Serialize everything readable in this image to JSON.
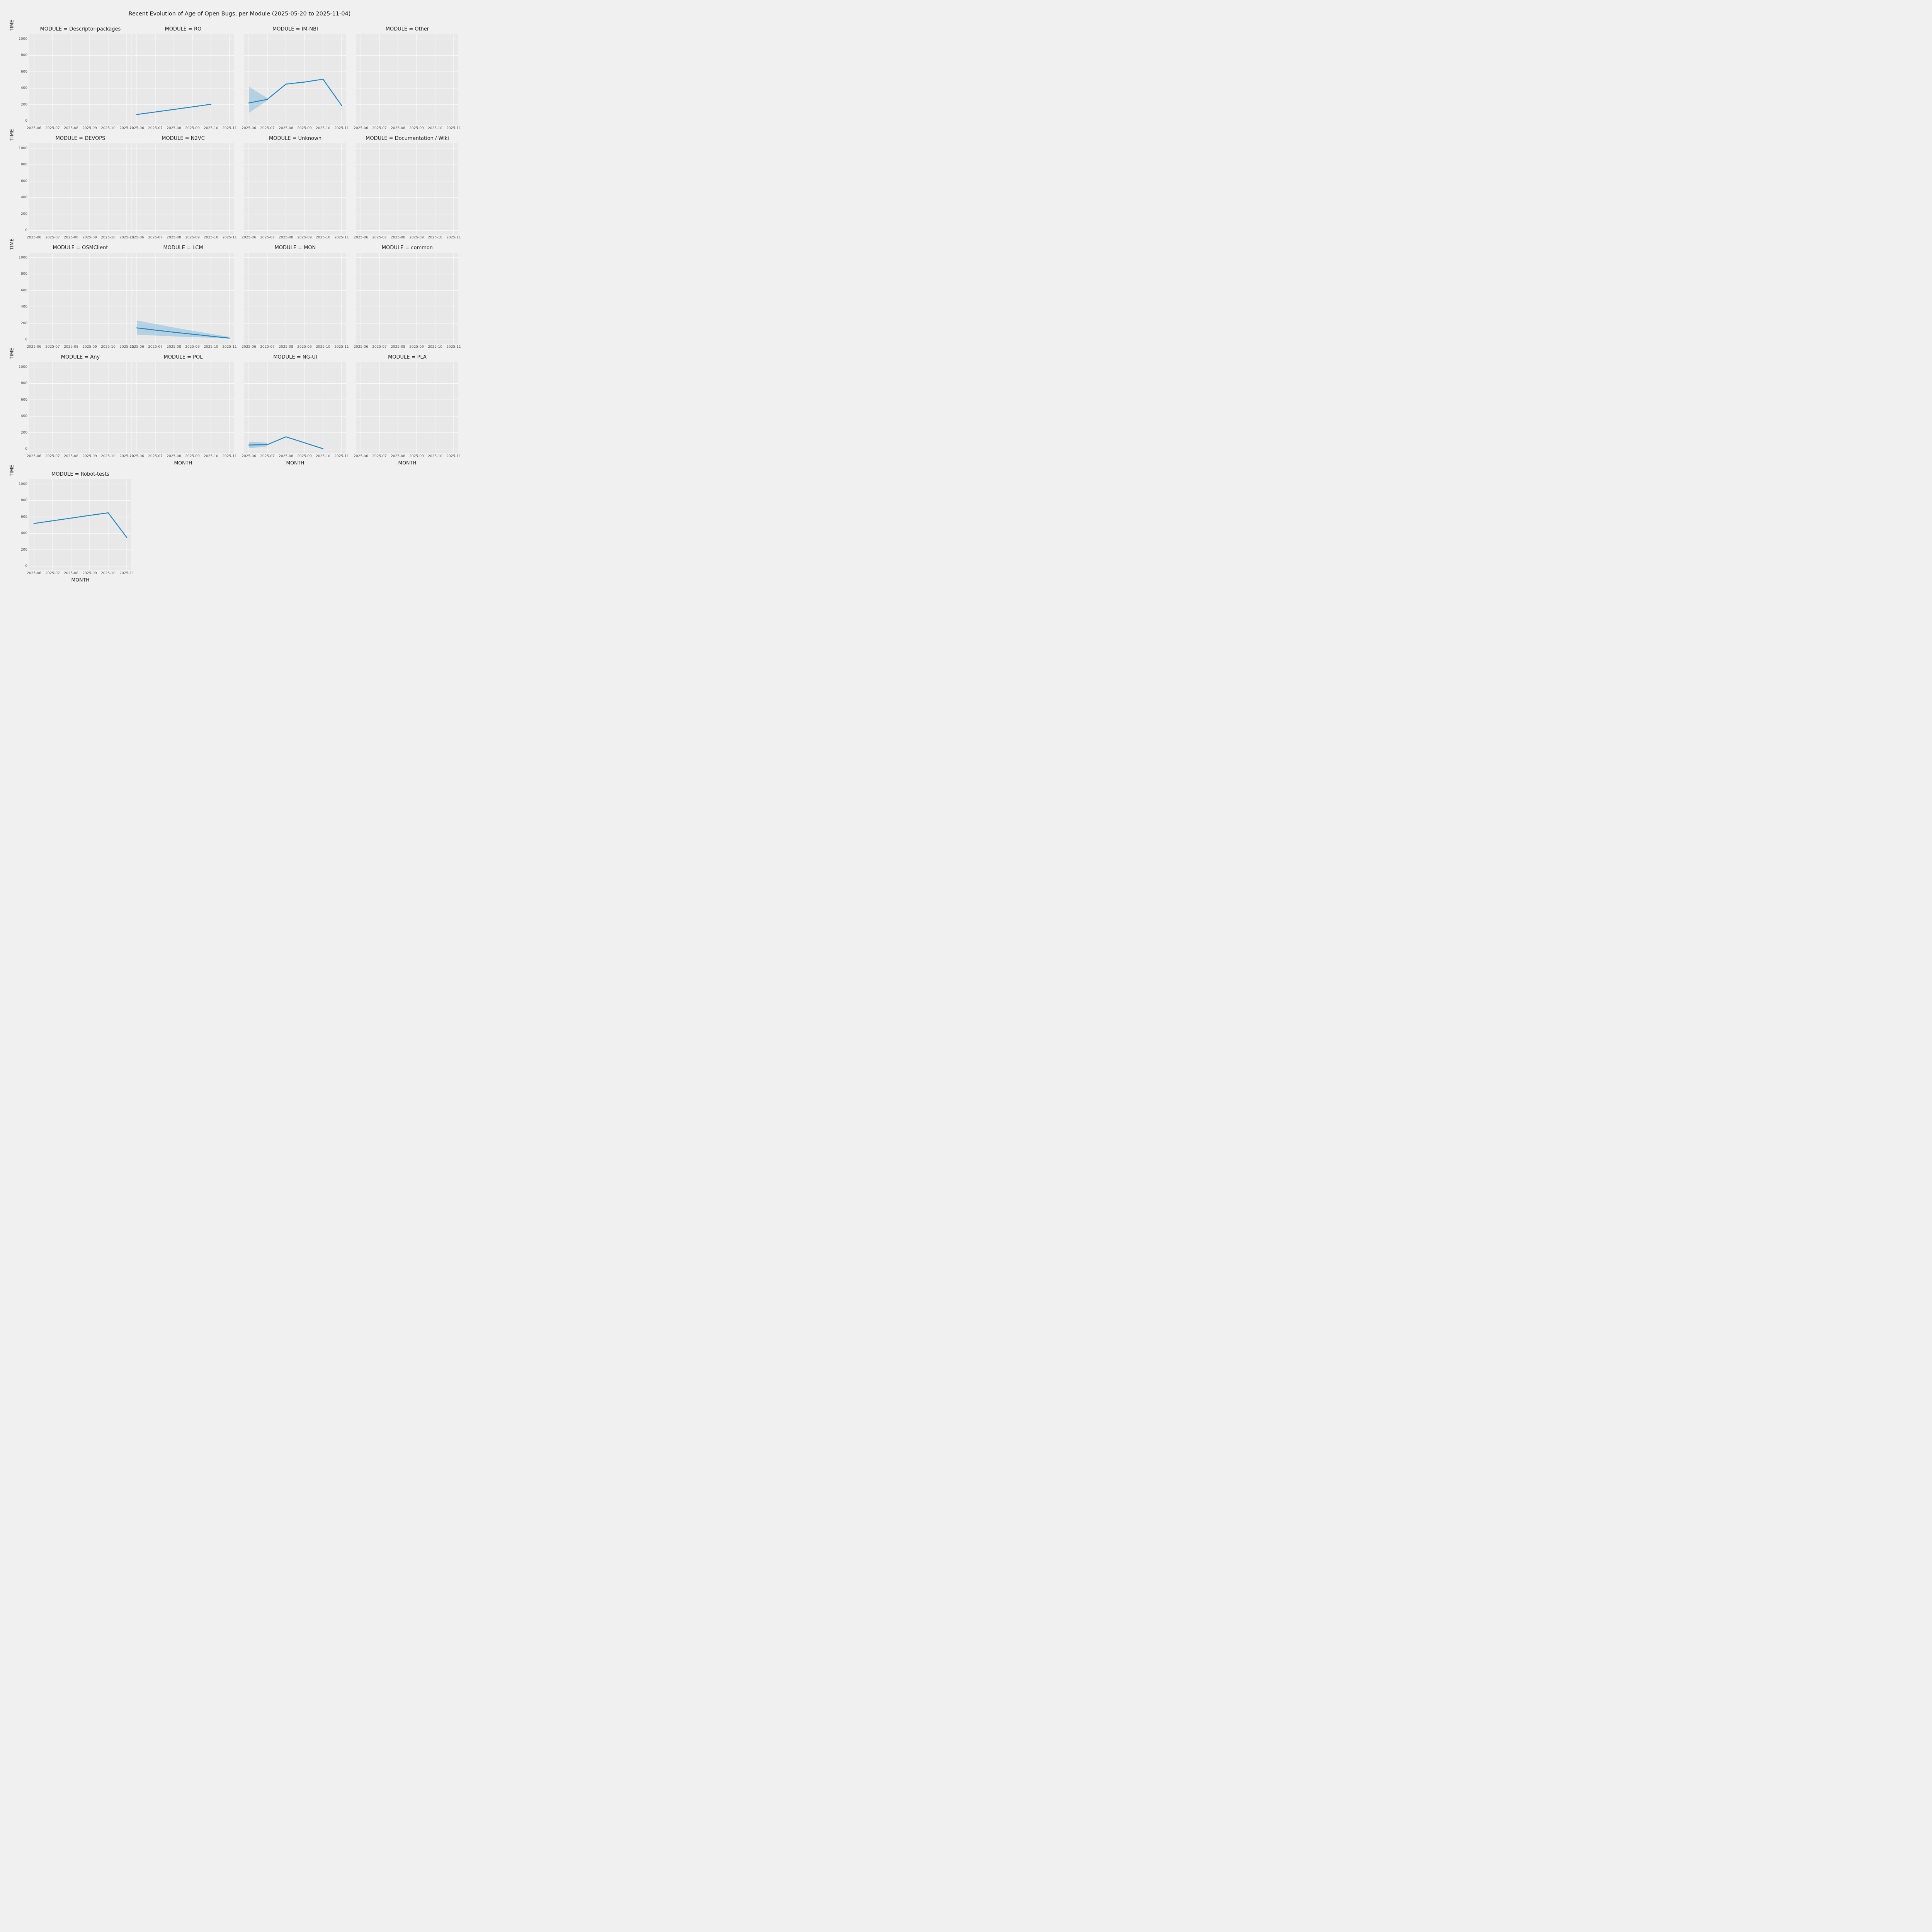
{
  "figure": {
    "title": "Recent Evolution of Age of Open Bugs, per Module (2025-05-20 to 2025-11-04)",
    "ylabel": "TIME",
    "xlabel": "MONTH",
    "x_tick_labels": [
      "2025-06",
      "2025-07",
      "2025-08",
      "2025-09",
      "2025-10",
      "2025-11"
    ],
    "y_ticks": [
      0,
      200,
      400,
      600,
      800,
      1000
    ],
    "ylim": [
      -50,
      1060
    ],
    "xlim": [
      -0.25,
      5.25
    ],
    "ncols": 4,
    "grid": true,
    "legend": "none",
    "colors": {
      "figure_bg": "#f0f0f0",
      "plot_bg": "#e8e8e8",
      "grid_line": "#fbfbfb",
      "line": "#1d87c8",
      "band": "#1d87c8",
      "band_opacity": 0.25,
      "tick_text": "#555555",
      "title_text": "#262626"
    }
  },
  "chart_data": [
    {
      "type": "line",
      "module": "Descriptor-packages",
      "title": "MODULE = Descriptor-packages",
      "x": [],
      "y": []
    },
    {
      "type": "line",
      "module": "RO",
      "title": "MODULE = RO",
      "x": [
        0,
        1,
        2,
        3,
        4
      ],
      "y": [
        80,
        111,
        142,
        173,
        205
      ]
    },
    {
      "type": "line",
      "module": "IM-NBI",
      "title": "MODULE = IM-NBI",
      "x": [
        0,
        1,
        2,
        3,
        4,
        5
      ],
      "y": [
        220,
        265,
        450,
        475,
        510,
        190
      ],
      "band": {
        "x": [
          0,
          1
        ],
        "upper": [
          420,
          280
        ],
        "lower": [
          100,
          250
        ]
      }
    },
    {
      "type": "line",
      "module": "Other",
      "title": "MODULE = Other",
      "x": [],
      "y": []
    },
    {
      "type": "line",
      "module": "DEVOPS",
      "title": "MODULE = DEVOPS",
      "x": [],
      "y": []
    },
    {
      "type": "line",
      "module": "N2VC",
      "title": "MODULE = N2VC",
      "x": [],
      "y": []
    },
    {
      "type": "line",
      "module": "Unknown",
      "title": "MODULE = Unknown",
      "x": [],
      "y": []
    },
    {
      "type": "line",
      "module": "Documentation / Wiki",
      "title": "MODULE = Documentation / Wiki",
      "x": [],
      "y": []
    },
    {
      "type": "line",
      "module": "OSMClient",
      "title": "MODULE = OSMClient",
      "x": [],
      "y": []
    },
    {
      "type": "line",
      "module": "LCM",
      "title": "MODULE = LCM",
      "x": [
        0,
        1,
        2,
        3,
        4,
        5
      ],
      "y": [
        145,
        118,
        92,
        68,
        44,
        20
      ],
      "band": {
        "x": [
          0,
          1,
          2,
          3,
          4,
          5
        ],
        "upper": [
          235,
          192,
          150,
          110,
          72,
          35
        ],
        "lower": [
          62,
          52,
          42,
          33,
          25,
          15
        ]
      }
    },
    {
      "type": "line",
      "module": "MON",
      "title": "MODULE = MON",
      "x": [],
      "y": []
    },
    {
      "type": "line",
      "module": "common",
      "title": "MODULE = common",
      "x": [],
      "y": []
    },
    {
      "type": "line",
      "module": "Any",
      "title": "MODULE = Any",
      "x": [],
      "y": []
    },
    {
      "type": "line",
      "module": "POL",
      "title": "MODULE = POL",
      "x": [],
      "y": []
    },
    {
      "type": "line",
      "module": "NG-UI",
      "title": "MODULE = NG-UI",
      "x": [
        0,
        1,
        2,
        4
      ],
      "y": [
        50,
        55,
        150,
        5
      ],
      "band": {
        "x": [
          0,
          1
        ],
        "upper": [
          92,
          78
        ],
        "lower": [
          10,
          33
        ]
      }
    },
    {
      "type": "line",
      "module": "PLA",
      "title": "MODULE = PLA",
      "x": [],
      "y": []
    },
    {
      "type": "line",
      "module": "Robot-tests",
      "title": "MODULE = Robot-tests",
      "x": [
        0,
        1,
        2,
        3,
        4,
        5
      ],
      "y": [
        520,
        553,
        586,
        619,
        650,
        350
      ]
    }
  ]
}
